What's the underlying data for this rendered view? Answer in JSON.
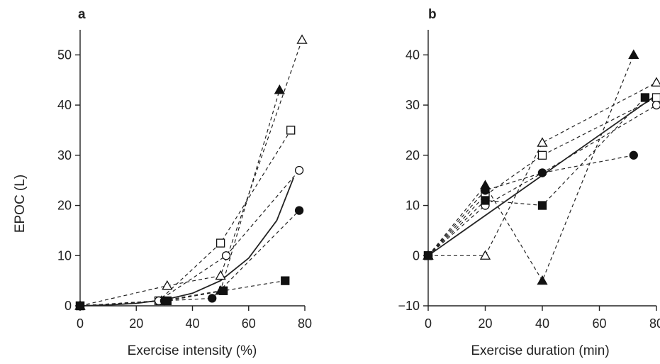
{
  "chart_data": [
    {
      "panel": "a",
      "type": "scatter",
      "xlabel": "Exercise intensity (%)",
      "ylabel": "EPOC (L)",
      "xlim": [
        0,
        80
      ],
      "ylim": [
        0,
        55
      ],
      "xticks": [
        "0",
        "20",
        "40",
        "60",
        "80"
      ],
      "yticks": [
        "0",
        "10",
        "20",
        "30",
        "40",
        "50"
      ],
      "grid": false,
      "series": [
        {
          "marker": "triangle-open",
          "x": [
            0,
            31,
            50,
            79
          ],
          "y": [
            0,
            4,
            6,
            53
          ]
        },
        {
          "marker": "triangle-filled",
          "x": [
            0,
            29,
            50,
            71
          ],
          "y": [
            0,
            1,
            3,
            43
          ]
        },
        {
          "marker": "square-open",
          "x": [
            0,
            28,
            50,
            75
          ],
          "y": [
            0,
            1,
            12.5,
            35
          ]
        },
        {
          "marker": "circle-open",
          "x": [
            0,
            28,
            52,
            78
          ],
          "y": [
            0,
            1,
            10,
            27
          ]
        },
        {
          "marker": "circle-filled",
          "x": [
            0,
            30,
            47,
            78
          ],
          "y": [
            0,
            1,
            1.5,
            19
          ]
        },
        {
          "marker": "square-filled",
          "x": [
            0,
            31,
            51,
            73
          ],
          "y": [
            0,
            1,
            3,
            5
          ]
        }
      ],
      "fit": {
        "style": "solid",
        "x": [
          0,
          10,
          20,
          30,
          40,
          50,
          60,
          70,
          76
        ],
        "y": [
          0,
          0.15,
          0.5,
          1.2,
          2.5,
          5,
          9.5,
          17,
          25.5
        ]
      }
    },
    {
      "panel": "b",
      "type": "scatter",
      "xlabel": "Exercise duration (min)",
      "ylabel": "",
      "xlim": [
        0,
        80
      ],
      "ylim": [
        -10,
        45
      ],
      "xticks": [
        "0",
        "20",
        "40",
        "60",
        "80"
      ],
      "yticks": [
        "−10",
        "0",
        "10",
        "20",
        "30",
        "40"
      ],
      "grid": false,
      "series": [
        {
          "marker": "triangle-open",
          "x": [
            0,
            20,
            40,
            80
          ],
          "y": [
            0,
            0,
            22.5,
            34.5
          ]
        },
        {
          "marker": "triangle-filled",
          "x": [
            0,
            20,
            40,
            72
          ],
          "y": [
            0,
            14,
            -5,
            40
          ]
        },
        {
          "marker": "square-open",
          "x": [
            0,
            20,
            40,
            80
          ],
          "y": [
            0,
            12,
            20,
            31.5
          ]
        },
        {
          "marker": "circle-open",
          "x": [
            0,
            20,
            40,
            80
          ],
          "y": [
            0,
            10,
            16.5,
            30
          ]
        },
        {
          "marker": "circle-filled",
          "x": [
            0,
            20,
            40,
            72
          ],
          "y": [
            0,
            13,
            16.5,
            20
          ]
        },
        {
          "marker": "square-filled",
          "x": [
            0,
            20,
            40,
            76
          ],
          "y": [
            0,
            11,
            10,
            31.5
          ]
        }
      ],
      "fit": {
        "style": "solid",
        "x": [
          0,
          80
        ],
        "y": [
          0,
          32
        ]
      }
    }
  ]
}
